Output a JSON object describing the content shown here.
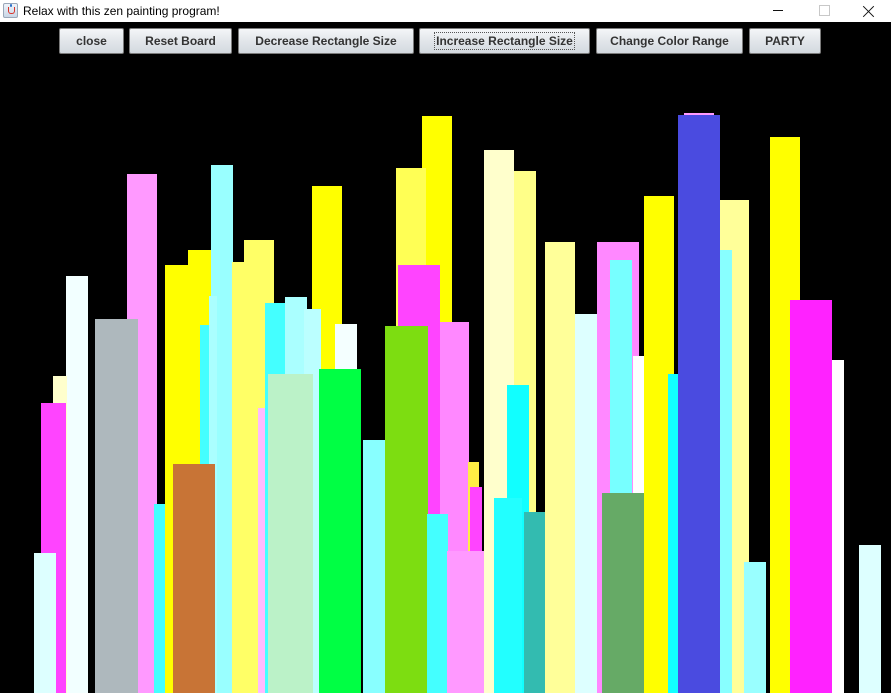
{
  "window": {
    "title": "Relax with this zen painting program!",
    "icon": "java-coffee-cup-icon",
    "controls": {
      "minimize_icon": "minimize-icon",
      "maximize_icon": "maximize-icon",
      "close_icon": "close-icon"
    }
  },
  "toolbar": {
    "buttons": [
      {
        "id": "close",
        "label": "close"
      },
      {
        "id": "reset-board",
        "label": "Reset Board"
      },
      {
        "id": "decrease-rectangle-size",
        "label": "Decrease Rectangle Size"
      },
      {
        "id": "increase-rectangle-size",
        "label": "Increase Rectangle Size",
        "focused": true
      },
      {
        "id": "change-color-range",
        "label": "Change Color Range"
      },
      {
        "id": "party",
        "label": "PARTY"
      }
    ]
  },
  "canvas": {
    "background": "#000000"
  }
}
